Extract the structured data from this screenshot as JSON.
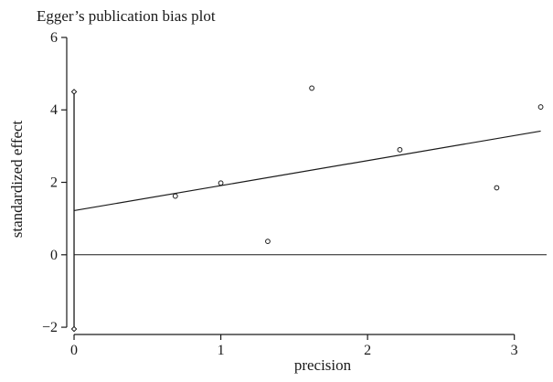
{
  "chart_data": {
    "type": "scatter",
    "title": "Egger’s publication bias plot",
    "xlabel": "precision",
    "ylabel": "standardized effect",
    "xlim": [
      -0.05,
      3.22
    ],
    "ylim": [
      -2.2,
      6.1
    ],
    "xticks": [
      0,
      1,
      2,
      3
    ],
    "yticks": [
      -2,
      0,
      2,
      4,
      6
    ],
    "xtick_labels": [
      "0",
      "1",
      "2",
      "3"
    ],
    "ytick_labels": [
      "−2",
      "0",
      "2",
      "4",
      "6"
    ],
    "grid": false,
    "points": [
      {
        "x": 0.69,
        "y": 1.62
      },
      {
        "x": 1.0,
        "y": 1.98
      },
      {
        "x": 1.32,
        "y": 0.37
      },
      {
        "x": 1.62,
        "y": 4.6
      },
      {
        "x": 2.22,
        "y": 2.9
      },
      {
        "x": 2.88,
        "y": 1.85
      },
      {
        "x": 3.18,
        "y": 4.08
      }
    ],
    "intercept_ci": {
      "x": 0,
      "low": -2.05,
      "high": 4.5
    },
    "regression_line": {
      "intercept": 1.22,
      "slope": 0.69,
      "x_start": 0,
      "x_end": 3.18
    },
    "reference_line_y": 0
  }
}
